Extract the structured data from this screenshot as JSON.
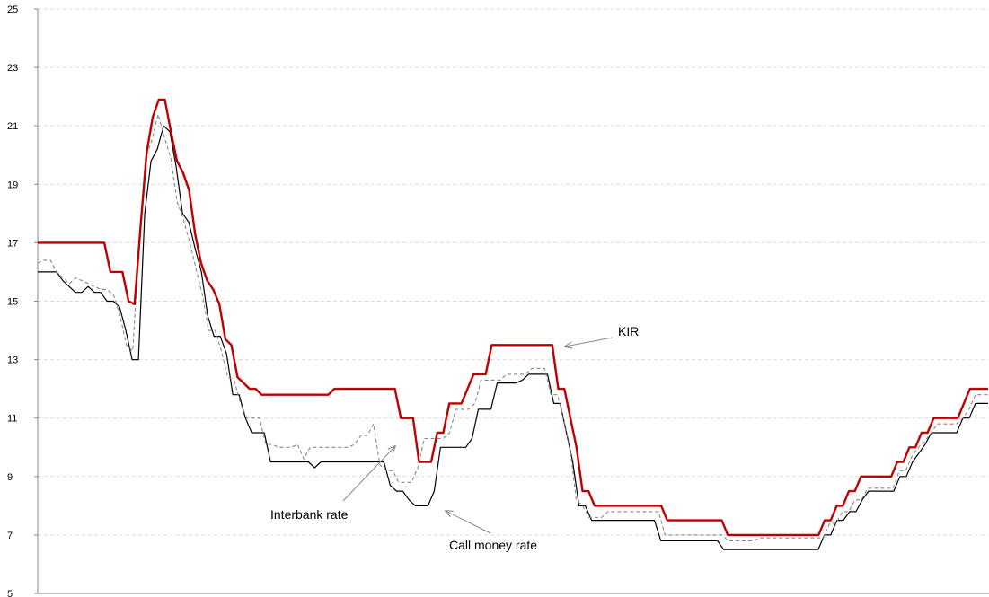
{
  "chart_data": {
    "type": "line",
    "title": "",
    "xlabel": "",
    "ylabel": "",
    "ylim": [
      5,
      25
    ],
    "yticks": [
      "5",
      "7",
      "9",
      "11",
      "13",
      "15",
      "17",
      "19",
      "21",
      "23",
      "25"
    ],
    "grid": "horizontal dashed",
    "legend": "none",
    "annotations": [
      "KIR",
      "Interbank rate",
      "Call money rate"
    ],
    "colors": {
      "kir": "#c00000",
      "interbank": "#888888",
      "call": "#000000",
      "arrow": "#888888"
    },
    "series": [
      {
        "key": "kir",
        "values": [
          17,
          17,
          17,
          17,
          17,
          17,
          17,
          17,
          17,
          17,
          17,
          17,
          16,
          16,
          16,
          15,
          14.9,
          17.6,
          20.1,
          21.3,
          21.9,
          21.9,
          20.8,
          19.8,
          19.4,
          18.8,
          17.3,
          16.3,
          15.7,
          15.4,
          14.9,
          13.7,
          13.5,
          12.4,
          12.2,
          12,
          12,
          11.8,
          11.8,
          11.8,
          11.8,
          11.8,
          11.8,
          11.8,
          11.8,
          11.8,
          11.8,
          11.8,
          11.8,
          12,
          12,
          12,
          12,
          12,
          12,
          12,
          12,
          12,
          12,
          12,
          11,
          11,
          11,
          9.5,
          9.5,
          9.5,
          10.5,
          10.5,
          11.5,
          11.5,
          11.5,
          12,
          12.5,
          12.5,
          12.5,
          13.5,
          13.5,
          13.5,
          13.5,
          13.5,
          13.5,
          13.5,
          13.5,
          13.5,
          13.5,
          13.5,
          12,
          12,
          11,
          10,
          8.5,
          8.5,
          8,
          8,
          8,
          8,
          8,
          8,
          8,
          8,
          8,
          8,
          8,
          8,
          7.5,
          7.5,
          7.5,
          7.5,
          7.5,
          7.5,
          7.5,
          7.5,
          7.5,
          7.5,
          7,
          7,
          7,
          7,
          7,
          7,
          7,
          7,
          7,
          7,
          7,
          7,
          7,
          7,
          7,
          7,
          7.5,
          7.5,
          8,
          8,
          8.5,
          8.5,
          9,
          9,
          9,
          9,
          9,
          9,
          9.5,
          9.5,
          10,
          10,
          10.5,
          10.5,
          11,
          11,
          11,
          11,
          11,
          11.5,
          12,
          12,
          12,
          12
        ]
      },
      {
        "key": "interbank",
        "values": [
          16.3,
          16.4,
          16.4,
          16,
          15.8,
          15.6,
          15.8,
          15.7,
          15.6,
          15.5,
          15.4,
          15.4,
          15.2,
          14.5,
          13.5,
          13.3,
          17,
          19.9,
          20.5,
          21.4,
          20.6,
          19.9,
          18.4,
          17.8,
          17,
          16.1,
          15.2,
          14,
          14,
          13.3,
          12.4,
          12.3,
          11.5,
          11,
          11,
          11,
          10.1,
          10.1,
          10,
          10,
          10,
          10.1,
          9.6,
          10,
          10,
          10,
          10,
          10,
          10,
          10,
          10.1,
          10.4,
          10.4,
          10.8,
          9.4,
          9.2,
          9.2,
          8.8,
          8.8,
          8.8,
          9.3,
          10.3,
          10.3,
          10.3,
          10.3,
          10.5,
          11.3,
          11.3,
          11.3,
          11.5,
          12.3,
          12.3,
          12.3,
          12.3,
          12.5,
          12.5,
          12.5,
          12.5,
          12.7,
          12.7,
          12.7,
          11.8,
          11.8,
          11,
          10,
          8.2,
          8,
          7.6,
          7.6,
          7.6,
          7.8,
          7.8,
          7.8,
          7.8,
          7.8,
          7.8,
          7.8,
          7.8,
          7.8,
          7,
          7,
          7,
          7,
          7,
          7,
          7,
          7,
          7,
          7,
          6.8,
          6.8,
          6.8,
          6.8,
          6.8,
          6.9,
          6.9,
          6.9,
          6.9,
          6.9,
          6.9,
          6.9,
          6.9,
          6.9,
          6.9,
          6.9,
          7.4,
          7.4,
          7.8,
          7.8,
          8.2,
          8.2,
          8.6,
          8.6,
          8.6,
          8.6,
          8.6,
          9.2,
          9.2,
          9.7,
          10,
          10.2,
          10.5,
          10.8,
          10.8,
          10.8,
          10.8,
          11,
          11.3,
          11.8,
          11.8,
          11.8
        ]
      },
      {
        "key": "call",
        "values": [
          16,
          16,
          16,
          16,
          15.7,
          15.5,
          15.3,
          15.3,
          15.5,
          15.3,
          15.3,
          15,
          15,
          14.8,
          14,
          13,
          13,
          18,
          19.8,
          20.2,
          21,
          20.8,
          19.6,
          18,
          17.7,
          16.8,
          16,
          14.5,
          13.8,
          13.8,
          13.2,
          11.8,
          11.8,
          11,
          10.5,
          10.5,
          10.5,
          9.5,
          9.5,
          9.5,
          9.5,
          9.5,
          9.5,
          9.5,
          9.3,
          9.5,
          9.5,
          9.5,
          9.5,
          9.5,
          9.5,
          9.5,
          9.5,
          9.5,
          9.5,
          9.5,
          8.7,
          8.5,
          8.5,
          8.2,
          8,
          8,
          8,
          8.5,
          10,
          10,
          10,
          10,
          10,
          10.3,
          11.3,
          11.3,
          11.3,
          12.2,
          12.2,
          12.2,
          12.2,
          12.3,
          12.5,
          12.5,
          12.5,
          12.5,
          11.5,
          11.5,
          10.5,
          9.5,
          8,
          8,
          7.5,
          7.5,
          7.5,
          7.5,
          7.5,
          7.5,
          7.5,
          7.5,
          7.5,
          7.5,
          7.5,
          6.8,
          6.8,
          6.8,
          6.8,
          6.8,
          6.8,
          6.8,
          6.8,
          6.8,
          6.8,
          6.5,
          6.5,
          6.5,
          6.5,
          6.5,
          6.5,
          6.5,
          6.5,
          6.5,
          6.5,
          6.5,
          6.5,
          6.5,
          6.5,
          6.5,
          6.5,
          7,
          7,
          7.5,
          7.5,
          7.8,
          7.8,
          8.2,
          8.5,
          8.5,
          8.5,
          8.5,
          8.5,
          9,
          9,
          9.5,
          9.8,
          10.1,
          10.5,
          10.5,
          10.5,
          10.5,
          10.5,
          11,
          11,
          11.5,
          11.5,
          11.5
        ]
      }
    ]
  }
}
